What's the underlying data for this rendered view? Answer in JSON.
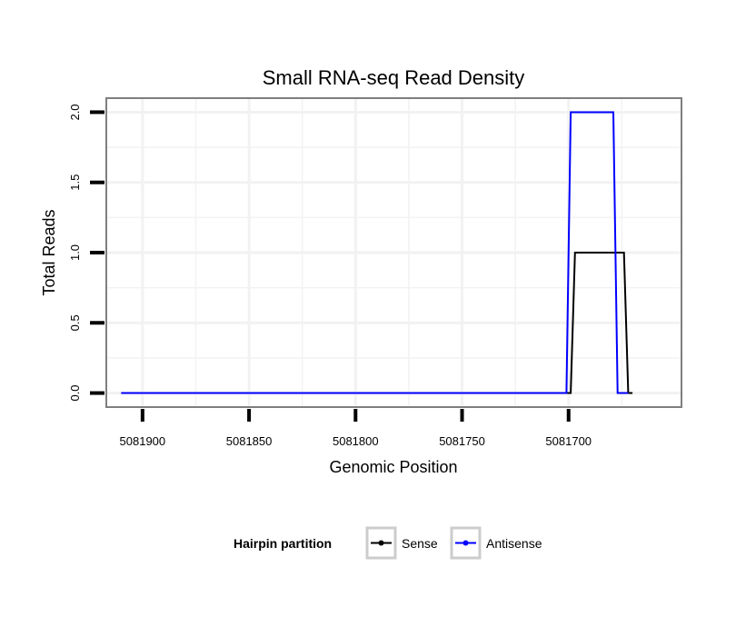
{
  "chart_data": {
    "type": "line",
    "title": "Small RNA-seq Read Density",
    "xlabel": "Genomic Position",
    "ylabel": "Total Reads",
    "xlim": [
      5081917,
      5081647
    ],
    "ylim": [
      -0.1,
      2.1
    ],
    "x_reversed": true,
    "xticks": [
      5081900,
      5081850,
      5081800,
      5081750,
      5081700
    ],
    "xtick_labels": [
      "5081900",
      "5081850",
      "5081800",
      "5081750",
      "5081700"
    ],
    "yticks": [
      0.0,
      0.5,
      1.0,
      1.5,
      2.0
    ],
    "ytick_labels": [
      "0.0",
      "0.5",
      "1.0",
      "1.5",
      "2.0"
    ],
    "grid": true,
    "legend": {
      "title": "Hairpin partition",
      "placement": "bottom"
    },
    "series": [
      {
        "name": "Sense",
        "color": "#000000",
        "x": [
          5081910,
          5081699,
          5081697,
          5081674,
          5081672,
          5081670
        ],
        "y": [
          0,
          0,
          1,
          1,
          0,
          0
        ]
      },
      {
        "name": "Antisense",
        "color": "#0000ff",
        "x": [
          5081910,
          5081701,
          5081699,
          5081679,
          5081677,
          5081672
        ],
        "y": [
          0,
          0,
          2,
          2,
          0,
          0
        ]
      }
    ]
  }
}
